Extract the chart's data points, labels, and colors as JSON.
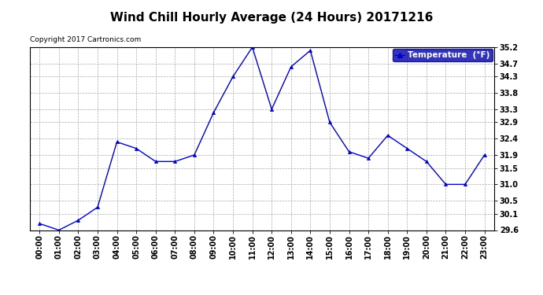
{
  "title": "Wind Chill Hourly Average (24 Hours) 20171216",
  "copyright_text": "Copyright 2017 Cartronics.com",
  "legend_label": "Temperature  (°F)",
  "x_labels": [
    "00:00",
    "01:00",
    "02:00",
    "03:00",
    "04:00",
    "05:00",
    "06:00",
    "07:00",
    "08:00",
    "09:00",
    "10:00",
    "11:00",
    "12:00",
    "13:00",
    "14:00",
    "15:00",
    "16:00",
    "17:00",
    "18:00",
    "19:00",
    "20:00",
    "21:00",
    "22:00",
    "23:00"
  ],
  "y_values": [
    29.8,
    29.6,
    29.9,
    30.3,
    32.3,
    32.1,
    31.7,
    31.7,
    31.9,
    33.2,
    34.3,
    35.2,
    33.3,
    34.6,
    35.1,
    32.9,
    32.0,
    31.8,
    32.5,
    32.1,
    31.7,
    31.0,
    31.0,
    31.9
  ],
  "ylim": [
    29.6,
    35.2
  ],
  "yticks": [
    29.6,
    30.1,
    30.5,
    31.0,
    31.5,
    31.9,
    32.4,
    32.9,
    33.3,
    33.8,
    34.3,
    34.7,
    35.2
  ],
  "line_color": "#0000cc",
  "marker": "^",
  "marker_size": 3,
  "bg_color": "#ffffff",
  "plot_bg_color": "#ffffff",
  "grid_color": "#aaaaaa",
  "title_fontsize": 11,
  "copyright_fontsize": 6.5,
  "tick_fontsize": 7,
  "legend_bg": "#0000aa",
  "legend_fg": "#ffffff"
}
